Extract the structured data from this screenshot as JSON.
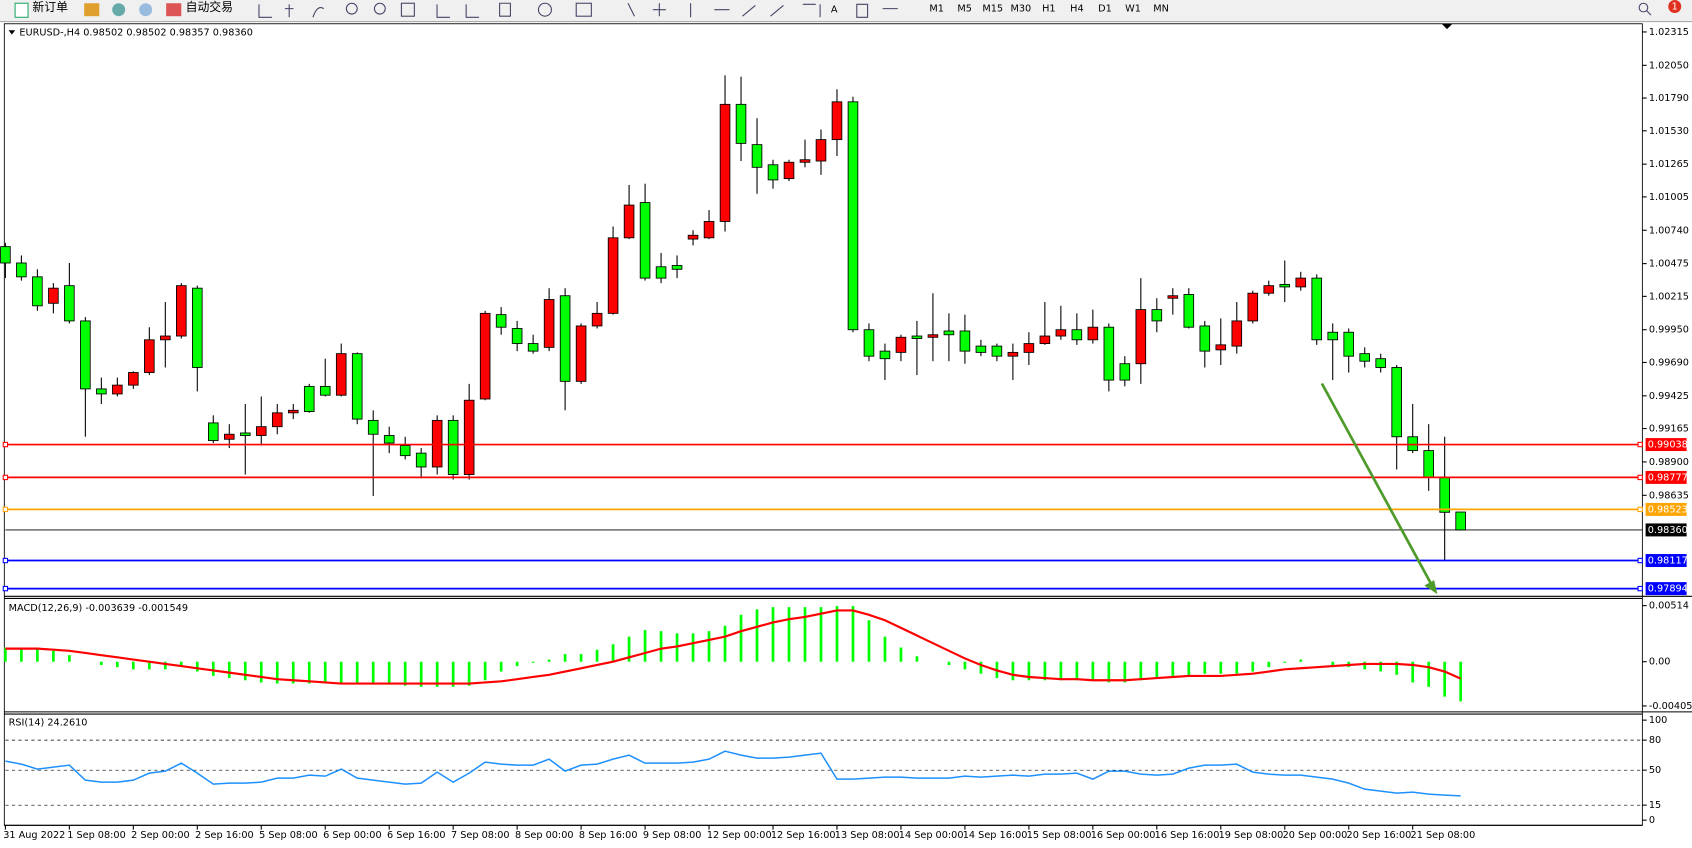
{
  "toolbar": {
    "new_order": "新订单",
    "auto_trading": "自动交易",
    "timeframes": [
      "M1",
      "M5",
      "M15",
      "M30",
      "H1",
      "H4",
      "D1",
      "W1",
      "MN"
    ],
    "notifications": 1
  },
  "chart_data": [
    {
      "type": "candlestick",
      "title": "EURUSD-,H4  0.98502 0.98502 0.98357 0.98360",
      "categories": [
        "31 Aug 2022",
        null,
        null,
        null,
        "1 Sep 08:00",
        null,
        null,
        null,
        "2 Sep 00:00",
        null,
        null,
        null,
        "2 Sep 16:00",
        null,
        null,
        null,
        "5 Sep 08:00",
        null,
        null,
        null,
        "6 Sep 00:00",
        null,
        null,
        null,
        "6 Sep 16:00",
        null,
        null,
        null,
        "7 Sep 08:00",
        null,
        null,
        null,
        "8 Sep 00:00",
        null,
        null,
        null,
        "8 Sep 16:00",
        null,
        null,
        null,
        "9 Sep 08:00",
        null,
        null,
        null,
        "12 Sep 00:00",
        null,
        null,
        null,
        "12 Sep 16:00",
        null,
        null,
        null,
        "13 Sep 08:00",
        null,
        null,
        null,
        "14 Sep 00:00",
        null,
        null,
        null,
        "14 Sep 16:00",
        null,
        null,
        null,
        "15 Sep 08:00",
        null,
        null,
        null,
        "16 Sep 00:00",
        null,
        null,
        null,
        "16 Sep 16:00",
        null,
        null,
        null,
        "19 Sep 08:00",
        null,
        null,
        null,
        "20 Sep 00:00",
        null,
        null,
        null,
        "20 Sep 16:00",
        null,
        null,
        null,
        "21 Sep 08:00",
        null,
        null,
        null
      ],
      "open": [
        1.0061,
        1.0048,
        1.0037,
        1.0016,
        1.003,
        1.0002,
        0.9948,
        0.9944,
        0.9951,
        0.9961,
        0.9987,
        0.999,
        1.0028,
        0.9921,
        0.9908,
        0.9913,
        0.9911,
        0.9918,
        0.9929,
        0.995,
        0.995,
        0.9943,
        0.9976,
        0.9923,
        0.9911,
        0.9903,
        0.9897,
        0.9886,
        0.9923,
        0.988,
        0.994,
        1.0007,
        0.9996,
        0.9984,
        0.9981,
        1.0022,
        0.9954,
        0.9998,
        1.0008,
        1.0068,
        1.0096,
        1.0045,
        1.0046,
        1.0067,
        1.0068,
        1.0081,
        1.0174,
        1.0142,
        1.0126,
        1.0115,
        1.0128,
        1.0129,
        1.0146,
        1.0176,
        0.9995,
        0.9978,
        0.9977,
        0.999,
        0.9989,
        0.9994,
        0.9994,
        0.9982,
        0.9982,
        0.9974,
        0.9977,
        0.9984,
        0.999,
        0.9995,
        0.9987,
        0.9997,
        0.9968,
        0.9968,
        1.0011,
        1.002,
        1.0023,
        0.9998,
        0.9979,
        0.9982,
        1.0002,
        1.0024,
        1.0031,
        1.0029,
        1.0036,
        0.9993,
        0.9993,
        0.9976,
        0.9972,
        0.9965,
        0.991,
        0.9899,
        0.9878,
        0.98502
      ],
      "high": [
        1.0064,
        1.0054,
        1.0043,
        1.0032,
        1.0048,
        1.0005,
        0.9957,
        0.9957,
        0.9962,
        0.9997,
        1.0017,
        1.0032,
        1.003,
        0.9927,
        0.992,
        0.9936,
        0.9942,
        0.9936,
        0.9936,
        0.9952,
        0.9972,
        0.9984,
        0.9977,
        0.9931,
        0.9918,
        0.991,
        0.9901,
        0.9927,
        0.9927,
        0.9952,
        1.001,
        1.0013,
        1.0002,
        0.9991,
        1.0028,
        1.0028,
        1.0,
        1.0017,
        1.0077,
        1.011,
        1.0111,
        1.0056,
        1.0054,
        1.0074,
        1.009,
        1.0197,
        1.0196,
        1.0163,
        1.013,
        1.013,
        1.0146,
        1.0154,
        1.0186,
        1.018,
        1.0,
        0.9984,
        0.9991,
        1.0002,
        1.0024,
        1.0008,
        1.0007,
        0.9987,
        0.9984,
        0.9984,
        0.9993,
        1.0017,
        1.0014,
        1.0008,
        1.0011,
        1.0,
        0.9974,
        1.0036,
        1.002,
        1.0028,
        1.0028,
        1.0002,
        1.0004,
        1.0017,
        1.0026,
        1.0034,
        1.005,
        1.0041,
        1.0039,
        1.0,
        0.9996,
        0.9981,
        0.9976,
        0.9967,
        0.9936,
        0.992,
        0.991,
        0.98502
      ],
      "low": [
        1.0036,
        1.0034,
        1.001,
        1.0008,
        1.0,
        0.991,
        0.9936,
        0.9942,
        0.9948,
        0.9959,
        0.9965,
        0.9988,
        0.9946,
        0.9905,
        0.9901,
        0.988,
        0.9903,
        0.9912,
        0.9924,
        0.9929,
        0.9942,
        0.9942,
        0.992,
        0.9863,
        0.9897,
        0.9892,
        0.9877,
        0.988,
        0.9876,
        0.9876,
        0.9939,
        0.9991,
        0.9978,
        0.9976,
        0.9978,
        0.9931,
        0.9952,
        0.9996,
        1.0007,
        1.0067,
        1.0034,
        1.0032,
        1.0036,
        1.0062,
        1.0067,
        1.0073,
        1.0129,
        1.0103,
        1.0107,
        1.0113,
        1.0124,
        1.0118,
        1.0133,
        0.9993,
        0.997,
        0.9955,
        0.997,
        0.9959,
        0.997,
        0.997,
        0.9968,
        0.9974,
        0.997,
        0.9955,
        0.9967,
        0.9983,
        0.9987,
        0.9983,
        0.9984,
        0.9946,
        0.995,
        0.9952,
        0.9993,
        1.0007,
        0.9996,
        0.9965,
        0.9967,
        0.9976,
        1.0,
        1.0022,
        1.0017,
        1.0026,
        0.9983,
        0.9955,
        0.9961,
        0.9965,
        0.9961,
        0.9884,
        0.9897,
        0.9867,
        0.9812,
        0.98357
      ],
      "close": [
        1.0048,
        1.0037,
        1.0014,
        1.0028,
        1.0002,
        0.9948,
        0.9944,
        0.9951,
        0.9961,
        0.9987,
        0.999,
        1.003,
        0.9965,
        0.9907,
        0.9912,
        0.9911,
        0.9918,
        0.9929,
        0.9931,
        0.993,
        0.9943,
        0.9976,
        0.9924,
        0.9912,
        0.9905,
        0.9895,
        0.9886,
        0.9923,
        0.988,
        0.9939,
        1.0008,
        0.9997,
        0.9984,
        0.9978,
        1.0019,
        0.9954,
        0.9998,
        1.0008,
        1.0068,
        1.0094,
        1.0036,
        1.0036,
        1.0043,
        1.007,
        1.0081,
        1.0174,
        1.0143,
        1.0124,
        1.0114,
        1.0128,
        1.013,
        1.0146,
        1.0176,
        0.9995,
        0.9974,
        0.9972,
        0.9989,
        0.9988,
        0.9991,
        0.9991,
        0.9978,
        0.9977,
        0.9974,
        0.9977,
        0.9984,
        0.999,
        0.9995,
        0.9987,
        0.9997,
        0.9955,
        0.9955,
        1.0011,
        1.0002,
        1.0022,
        0.9997,
        0.9978,
        0.9983,
        1.0002,
        1.0024,
        1.003,
        1.0029,
        1.0036,
        0.9987,
        0.9987,
        0.9974,
        0.997,
        0.9965,
        0.991,
        0.9899,
        0.9878,
        0.985,
        0.9836
      ],
      "up_color": "#ff0000",
      "down_color": "#00ff00",
      "ylim": [
        0.9785,
        1.0238
      ],
      "yticks": [
        1.02315,
        {
          "value": 1.0205,
          "label": "1.02050"
        },
        {
          "value": 1.0179,
          "label": "1.01790"
        },
        {
          "value": 1.0153,
          "label": "1.01530"
        },
        1.01265,
        1.01005,
        {
          "value": 1.0074,
          "label": "1.00740"
        },
        1.00475,
        1.00215,
        {
          "value": 0.9995,
          "label": "0.99950"
        },
        {
          "value": 0.9969,
          "label": "0.99690"
        },
        0.99425,
        0.99165,
        {
          "value": 0.989,
          "label": "0.98900"
        },
        0.98635
      ],
      "levels": [
        {
          "value": 0.99038,
          "color": "#ff0000"
        },
        {
          "value": 0.98777,
          "color": "#ff0000"
        },
        {
          "value": 0.98523,
          "color": "#ffa500"
        },
        {
          "value": 0.9836,
          "label": "0.98360",
          "color": "#000000"
        },
        {
          "value": 0.98117,
          "color": "#0000ff"
        },
        {
          "value": 0.97894,
          "color": "#0000ff"
        }
      ]
    },
    {
      "type": "macd",
      "title": "MACD(12,26,9) -0.003639 -0.001549",
      "bars": [
        0.0013,
        0.0013,
        0.0012,
        0.001,
        0.0006,
        0,
        -0.0003,
        -0.0005,
        -0.0007,
        -0.0007,
        -0.0007,
        -0.0003,
        -0.0009,
        -0.0013,
        -0.0015,
        -0.0017,
        -0.0019,
        -0.002,
        -0.002,
        -0.002,
        -0.002,
        -0.002,
        -0.002,
        -0.0021,
        -0.0021,
        -0.0022,
        -0.0023,
        -0.0023,
        -0.0023,
        -0.0022,
        -0.0017,
        -0.0009,
        -0.0004,
        -0.0001,
        0.0002,
        0.0007,
        0.0007,
        0.0011,
        0.0016,
        0.0023,
        0.0029,
        0.0028,
        0.0026,
        0.0026,
        0.0028,
        0.0033,
        0.0043,
        0.0048,
        0.005,
        0.005,
        0.005,
        0.005,
        0.0051,
        0.0051,
        0.0038,
        0.0023,
        0.0013,
        0.0005,
        0,
        -0.0003,
        -0.0007,
        -0.0011,
        -0.0015,
        -0.0017,
        -0.0017,
        -0.0017,
        -0.0017,
        -0.0017,
        -0.0017,
        -0.0019,
        -0.0019,
        -0.0017,
        -0.0015,
        -0.0013,
        -0.0013,
        -0.0011,
        -0.0011,
        -0.0011,
        -0.0009,
        -0.0005,
        -0.0001,
        0.0002,
        0,
        -0.0005,
        -0.0005,
        -0.0007,
        -0.0009,
        -0.0012,
        -0.0019,
        -0.0023,
        -0.0032,
        -0.003639
      ],
      "bar_color": "#00ff00",
      "signal": [
        0.0012,
        0.0012,
        0.0012,
        0.0011,
        0.001,
        0.0008,
        0.0006,
        0.0004,
        0.0002,
        0,
        -0.0002,
        -0.0004,
        -0.0006,
        -0.0008,
        -0.001,
        -0.0012,
        -0.0014,
        -0.0016,
        -0.0017,
        -0.0018,
        -0.0019,
        -0.002,
        -0.002,
        -0.002,
        -0.002,
        -0.002,
        -0.002,
        -0.002,
        -0.002,
        -0.002,
        -0.0019,
        -0.0018,
        -0.0016,
        -0.0014,
        -0.0012,
        -0.0009,
        -0.0006,
        -0.0003,
        0,
        0.0004,
        0.0008,
        0.0012,
        0.0014,
        0.0017,
        0.002,
        0.0023,
        0.0028,
        0.0032,
        0.0036,
        0.0039,
        0.0041,
        0.0044,
        0.0047,
        0.0047,
        0.0043,
        0.0038,
        0.0031,
        0.0024,
        0.0017,
        0.001,
        0.0003,
        -0.0003,
        -0.0008,
        -0.0012,
        -0.0014,
        -0.0015,
        -0.0016,
        -0.0016,
        -0.0017,
        -0.0017,
        -0.0017,
        -0.0016,
        -0.0015,
        -0.0014,
        -0.0013,
        -0.0013,
        -0.0013,
        -0.0012,
        -0.0011,
        -0.0009,
        -0.0007,
        -0.0006,
        -0.0005,
        -0.0004,
        -0.0003,
        -0.0002,
        -0.0002,
        -0.0002,
        -0.0003,
        -0.0005,
        -0.0009,
        -0.001549
      ],
      "signal_color": "#ff0000",
      "ylim": [
        -0.0045,
        0.0056
      ],
      "yticks": [
        0.00514,
        {
          "value": 0,
          "label": "0.00"
        },
        -0.004057
      ]
    },
    {
      "type": "line",
      "title": "RSI(14) 24.2610",
      "values": [
        59,
        56,
        51,
        53,
        55,
        40,
        38,
        38,
        40,
        47,
        49,
        57,
        47,
        36,
        37,
        37,
        38,
        42,
        42,
        45,
        44,
        51,
        42,
        40,
        38,
        36,
        37,
        48,
        38,
        47,
        58,
        56,
        55,
        55,
        61,
        49,
        55,
        56,
        61,
        65,
        57,
        57,
        57,
        58,
        61,
        69,
        65,
        62,
        62,
        63,
        65,
        67,
        41,
        41,
        42,
        43,
        43,
        42,
        42,
        42,
        44,
        43,
        44,
        45,
        44,
        46,
        46,
        47,
        41,
        49,
        49,
        46,
        45,
        46,
        52,
        55,
        55,
        56,
        48,
        46,
        45,
        45,
        43,
        41,
        37,
        31,
        29,
        27,
        28,
        26,
        25,
        24.261
      ],
      "color": "#1e90ff",
      "ylim": [
        -3,
        105
      ],
      "yticks": [
        100,
        80,
        50,
        15,
        0
      ]
    }
  ]
}
